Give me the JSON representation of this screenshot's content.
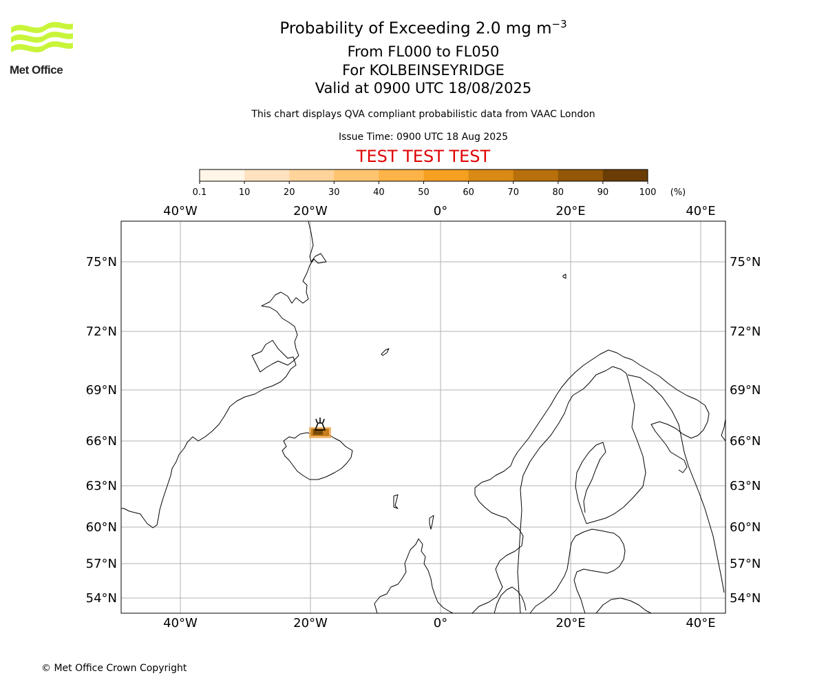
{
  "logo": {
    "text": "Met Office",
    "colors": {
      "waves": "#c8f53a",
      "text": "#222222"
    }
  },
  "title": {
    "line1_main": "Probability of Exceeding 2.0 mg m",
    "line1_sup": "−3",
    "line2": "From FL000 to FL050",
    "line3": "For KOLBEINSEYRIDGE",
    "line4": "Valid at 0900 UTC 18/08/2025"
  },
  "subtitle": "This chart displays QVA compliant probabilistic data from VAAC London",
  "issue_time": "Issue Time: 0900 UTC 18 Aug 2025",
  "test_banner": "TEST TEST TEST",
  "colorbar": {
    "ticks": [
      "0.1",
      "10",
      "20",
      "30",
      "40",
      "50",
      "60",
      "70",
      "80",
      "90",
      "100"
    ],
    "unit": "(%)",
    "colors": [
      "#fff6e8",
      "#ffe3c0",
      "#ffd49a",
      "#ffc470",
      "#fdb347",
      "#f5a020",
      "#d98a14",
      "#b8700c",
      "#935707",
      "#6a3d06"
    ]
  },
  "map": {
    "lon_labels": [
      "40°W",
      "20°W",
      "0°",
      "20°E",
      "40°E"
    ],
    "lat_labels": [
      "75°N",
      "72°N",
      "69°N",
      "66°N",
      "63°N",
      "60°N",
      "57°N",
      "54°N"
    ],
    "volcano_icon": "volcano-triangle-icon",
    "ash_probability_pct": [
      60,
      100
    ],
    "colors": {
      "grid": "#b0b0b0",
      "coast": "#000000",
      "ash_light": "#f0a040",
      "ash_dark": "#7a4a06"
    }
  },
  "copyright": "© Met Office Crown Copyright"
}
